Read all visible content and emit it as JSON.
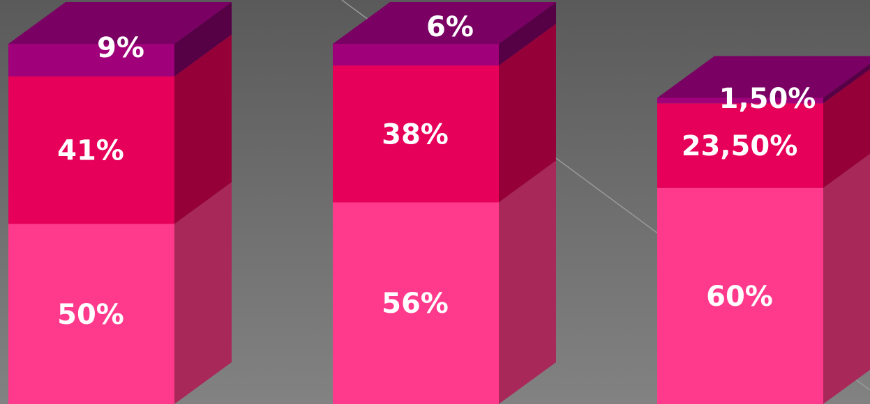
{
  "chart_data": {
    "type": "bar",
    "stacked": true,
    "style": "3d",
    "legend": "none",
    "grid": false,
    "title": "",
    "categories": [
      "",
      "",
      ""
    ],
    "series": [
      {
        "values": [
          50,
          56,
          60
        ],
        "labels": [
          "50%",
          "56%",
          "60%"
        ],
        "color": "#ff3a8c",
        "side_color": "#a8285a"
      },
      {
        "values": [
          41,
          38,
          23.5
        ],
        "labels": [
          "41%",
          "38%",
          "23,50%"
        ],
        "color": "#e6005a",
        "side_color": "#960038"
      },
      {
        "values": [
          9,
          6,
          1.5
        ],
        "labels": [
          "9%",
          "6%",
          "1,50%"
        ],
        "color": "#a0007a",
        "side_color": "#560046",
        "top_color": "#7a0063"
      }
    ],
    "ylim": [
      0,
      100
    ]
  }
}
